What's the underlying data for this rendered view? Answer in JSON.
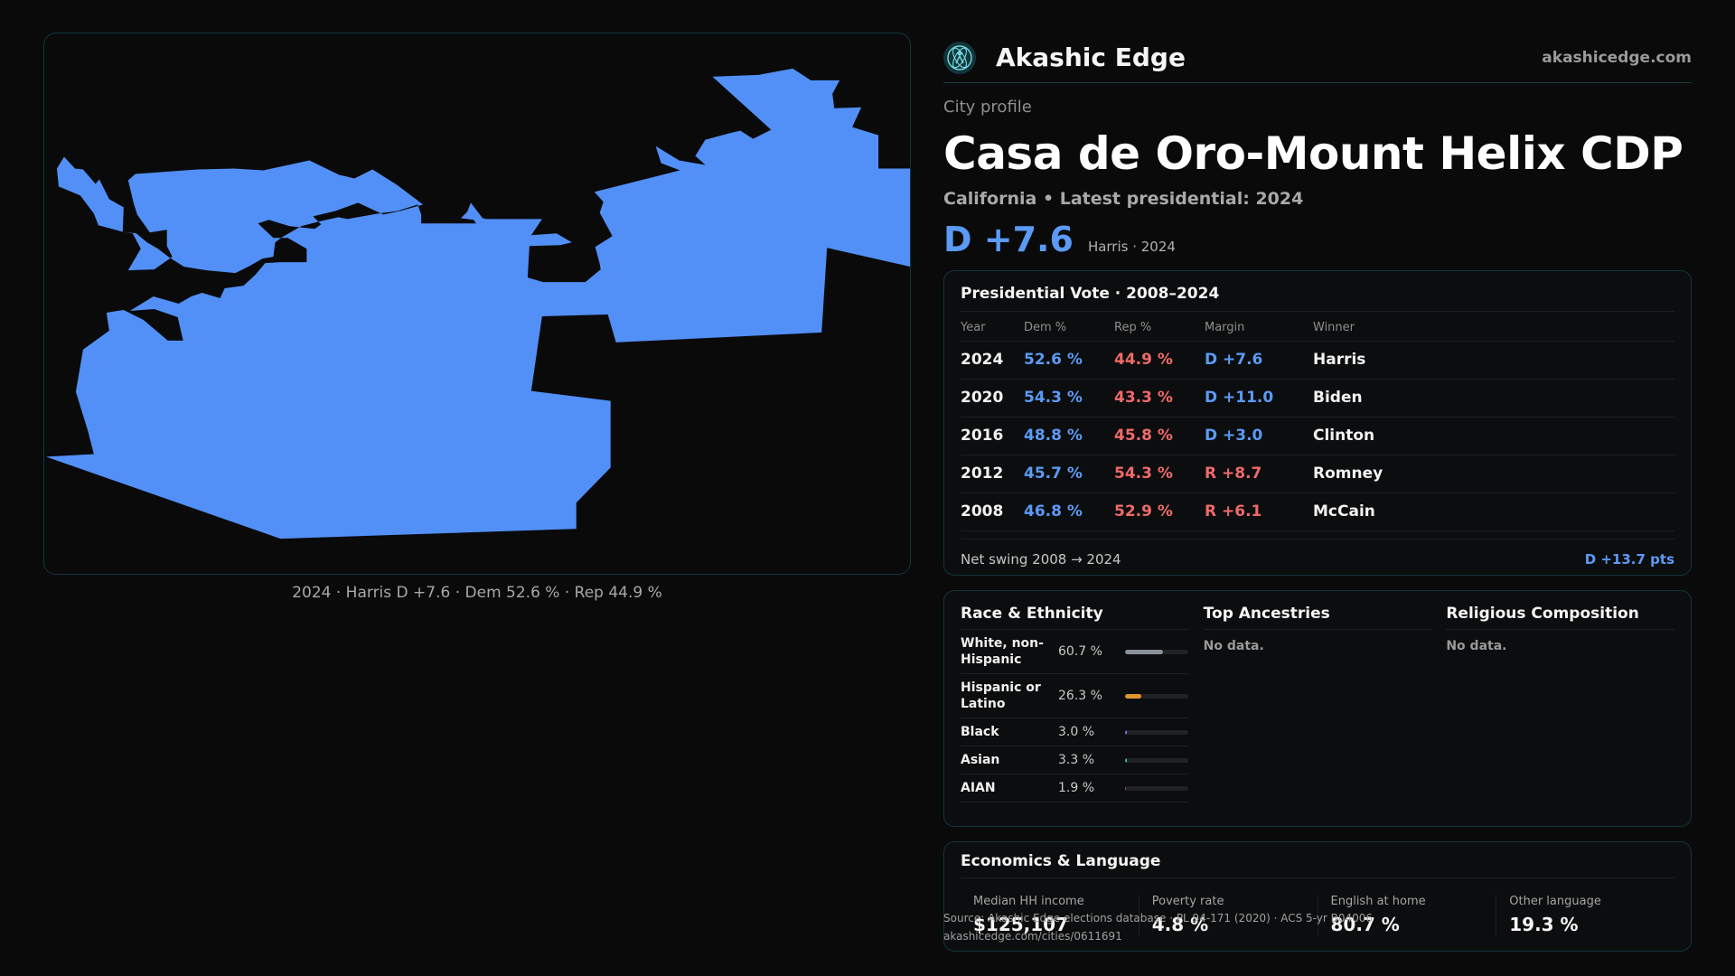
{
  "map": {
    "caption": "2024 · Harris D +7.6 · Dem 52.6 % · Rep 44.9 %",
    "fill_color": "#5290f7"
  },
  "brand": {
    "name": "Akashic Edge",
    "url": "akashicedge.com",
    "logo_icon": "atom-person-icon"
  },
  "profile": {
    "kicker": "City profile",
    "title": "Casa de Oro-Mount Helix CDP",
    "subtitle": "California • Latest presidential: 2024",
    "headline_margin": "D +7.6",
    "headline_note": "Harris · 2024"
  },
  "vote": {
    "title": "Presidential Vote · 2008–2024",
    "headers": {
      "year": "Year",
      "dem": "Dem %",
      "rep": "Rep %",
      "margin": "Margin",
      "winner": "Winner"
    },
    "rows": [
      {
        "year": "2024",
        "dem": "52.6 %",
        "rep": "44.9 %",
        "margin": "D +7.6",
        "winner": "Harris",
        "party": "D"
      },
      {
        "year": "2020",
        "dem": "54.3 %",
        "rep": "43.3 %",
        "margin": "D +11.0",
        "winner": "Biden",
        "party": "D"
      },
      {
        "year": "2016",
        "dem": "48.8 %",
        "rep": "45.8 %",
        "margin": "D +3.0",
        "winner": "Clinton",
        "party": "D"
      },
      {
        "year": "2012",
        "dem": "45.7 %",
        "rep": "54.3 %",
        "margin": "R +8.7",
        "winner": "Romney",
        "party": "R"
      },
      {
        "year": "2008",
        "dem": "46.8 %",
        "rep": "52.9 %",
        "margin": "R +6.1",
        "winner": "McCain",
        "party": "R"
      }
    ],
    "net_swing_label": "Net swing 2008 → 2024",
    "net_swing_value": "D +13.7 pts"
  },
  "colors": {
    "dem": "#5b9af5",
    "rep": "#ef6a6a"
  },
  "demographics": {
    "race_title": "Race & Ethnicity",
    "race": [
      {
        "label": "White, non-Hispanic",
        "pct": "60.7 %",
        "share": 0.607,
        "color": "#8a919c"
      },
      {
        "label": "Hispanic or Latino",
        "pct": "26.3 %",
        "share": 0.263,
        "color": "#e0962f"
      },
      {
        "label": "Black",
        "pct": "3.0 %",
        "share": 0.03,
        "color": "#7c6cf0"
      },
      {
        "label": "Asian",
        "pct": "3.3 %",
        "share": 0.033,
        "color": "#3fbf8a"
      },
      {
        "label": "AIAN",
        "pct": "1.9 %",
        "share": 0.019,
        "color": "#8d6b4a"
      }
    ],
    "ancestry_title": "Top Ancestries",
    "ancestry_empty": "No data.",
    "religion_title": "Religious Composition",
    "religion_empty": "No data."
  },
  "economics": {
    "title": "Economics & Language",
    "items": [
      {
        "label": "Median HH income",
        "value": "$125,107"
      },
      {
        "label": "Poverty rate",
        "value": "4.8 %"
      },
      {
        "label": "English at home",
        "value": "80.7 %"
      },
      {
        "label": "Other language",
        "value": "19.3 %"
      }
    ]
  },
  "source": {
    "line1": "Source: Akashic Edge elections database · PL 94-171 (2020) · ACS 5-yr B04006",
    "line2": "akashicedge.com/cities/0611691"
  }
}
